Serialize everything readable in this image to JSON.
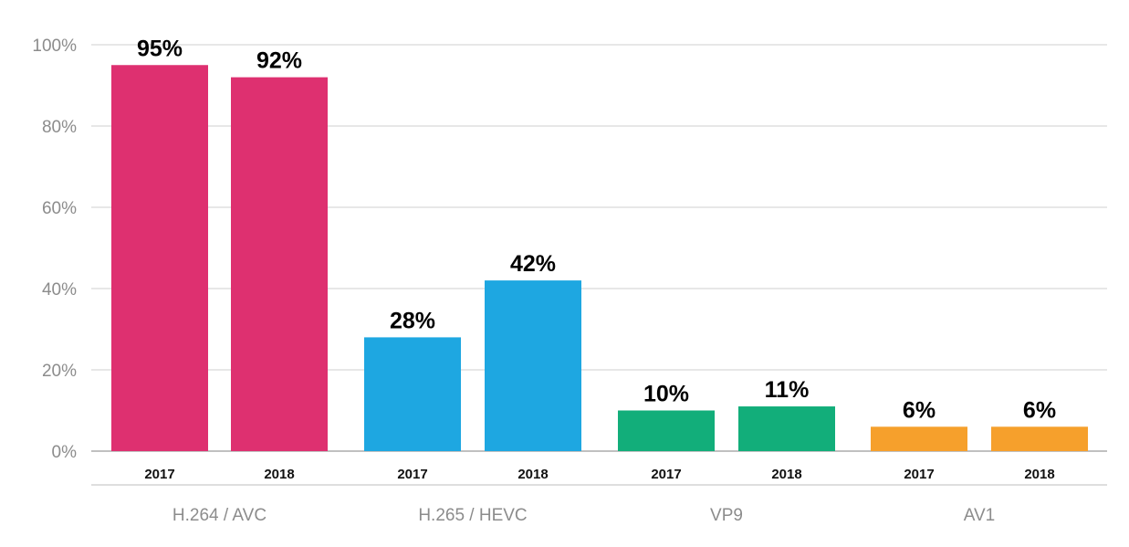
{
  "chart_data": {
    "type": "bar",
    "groups": [
      "H.264 / AVC",
      "H.265 / HEVC",
      "VP9",
      "AV1"
    ],
    "categories": [
      "2017",
      "2018"
    ],
    "group_colors": [
      "#de3070",
      "#1ea7e1",
      "#12ae7a",
      "#f6a02c"
    ],
    "values": [
      [
        95,
        92
      ],
      [
        28,
        42
      ],
      [
        10,
        11
      ],
      [
        6,
        6
      ]
    ],
    "data_labels": [
      [
        "95%",
        "92%"
      ],
      [
        "28%",
        "42%"
      ],
      [
        "10%",
        "11%"
      ],
      [
        "6%",
        "6%"
      ]
    ],
    "ylim": [
      0,
      100
    ],
    "yticks": [
      0,
      20,
      40,
      60,
      80,
      100
    ],
    "ytick_labels": [
      "0%",
      "20%",
      "40%",
      "60%",
      "80%",
      "100%"
    ],
    "grid": true,
    "legend": "none"
  }
}
